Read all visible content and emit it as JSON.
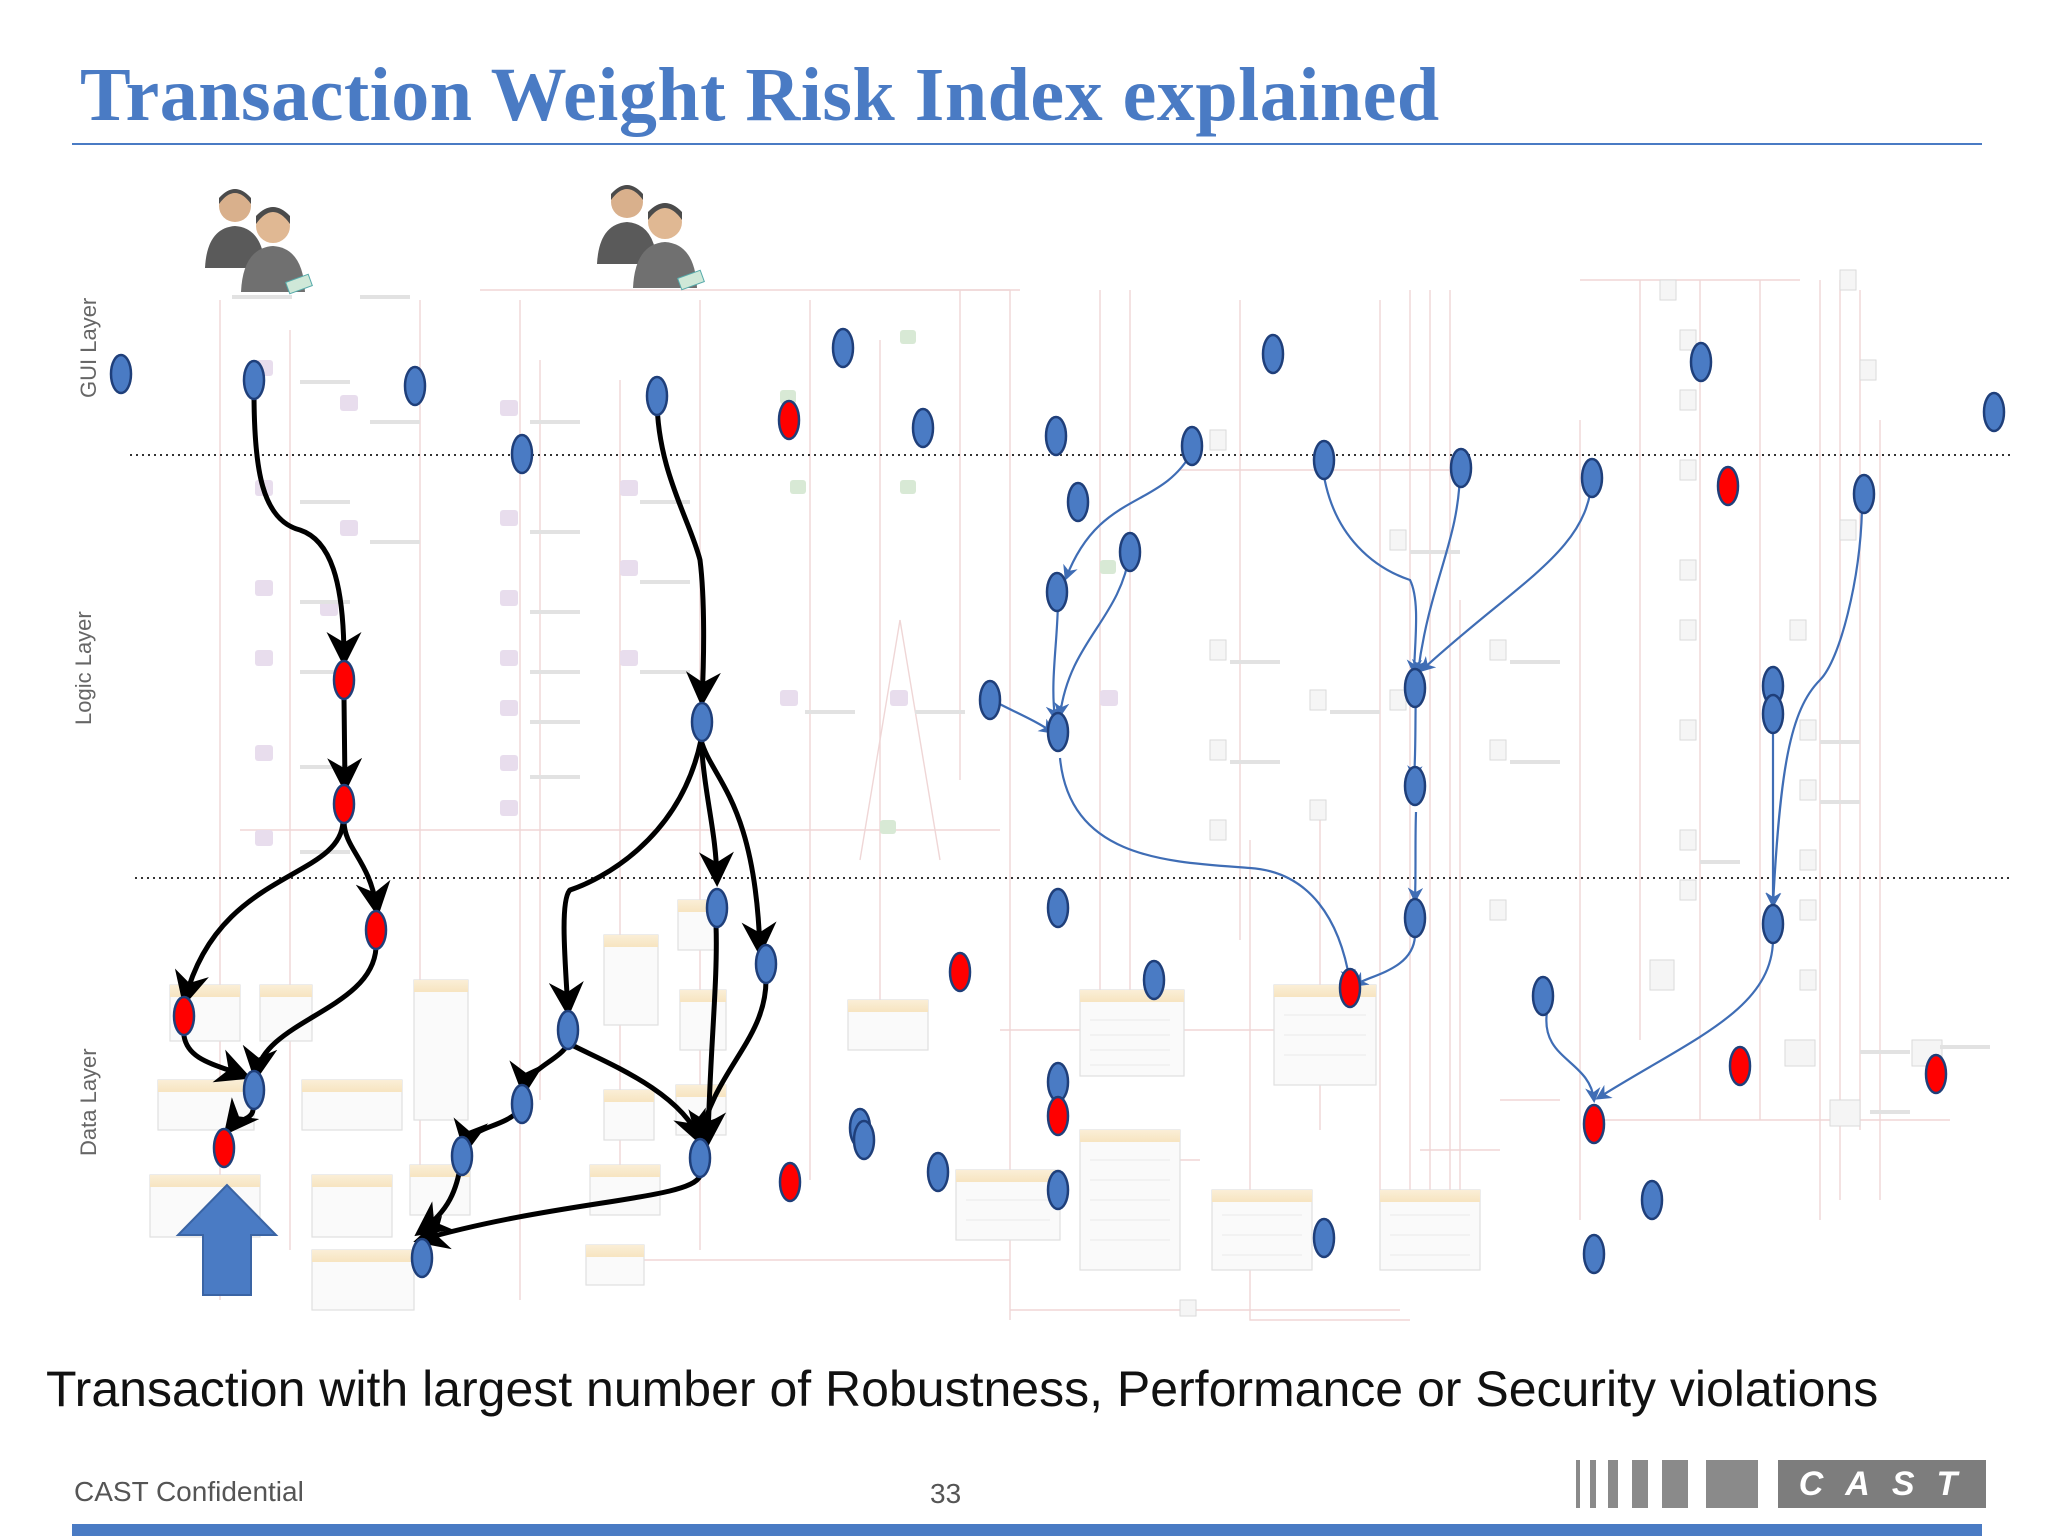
{
  "title": "Transaction Weight Risk Index explained",
  "layers": {
    "gui": "GUI Layer",
    "logic": "Logic Layer",
    "data": "Data Layer"
  },
  "caption": "Transaction with largest number of Robustness, Performance or Security  violations",
  "footer": {
    "confidential": "CAST Confidential",
    "page": "33",
    "logo": "CAST"
  },
  "colors": {
    "title": "#4a7bc4",
    "node_ok": "#4a7bc4",
    "node_violation": "#ff0000",
    "edge_highlight": "#000000",
    "edge_normal": "#3f6db5",
    "arrow": "#4a7bc4"
  },
  "icons": [
    "users-icon",
    "up-arrow-icon",
    "cast-logo"
  ]
}
